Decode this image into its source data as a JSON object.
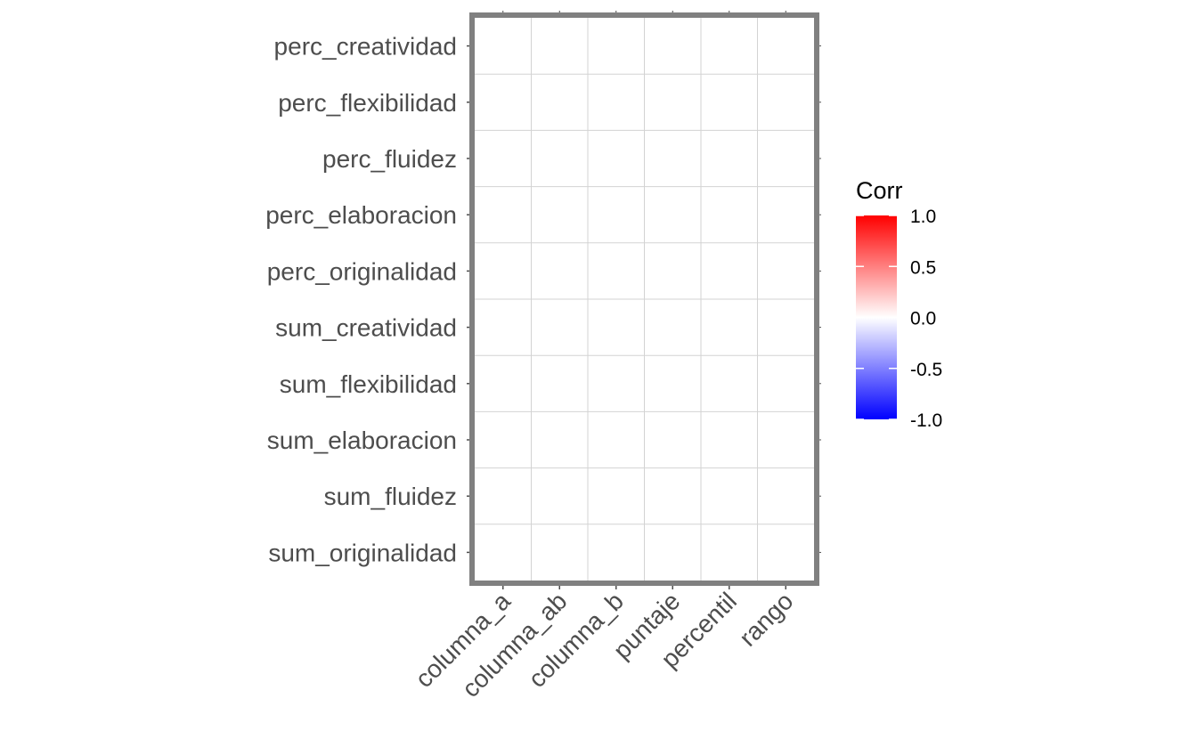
{
  "chart_data": {
    "type": "heatmap",
    "title": "",
    "xlabel": "",
    "ylabel": "",
    "x_categories": [
      "columna_a",
      "columna_ab",
      "columna_b",
      "puntaje",
      "percentil",
      "rango"
    ],
    "y_categories": [
      "perc_creatividad",
      "perc_flexibilidad",
      "perc_fluidez",
      "perc_elaboracion",
      "perc_originalidad",
      "sum_creatividad",
      "sum_flexibilidad",
      "sum_elaboracion",
      "sum_fluidez",
      "sum_originalidad"
    ],
    "values": null,
    "legend": {
      "title": "Corr",
      "placement": "right",
      "ticks": [
        1.0,
        0.5,
        0.0,
        -0.5,
        -1.0
      ],
      "tick_labels": [
        "1.0",
        "0.5",
        "0.0",
        "-0.5",
        "-1.0"
      ],
      "range": [
        -1.0,
        1.0
      ],
      "colors": {
        "high": "#ff0000",
        "mid": "#ffffff",
        "low": "#0000ff"
      }
    },
    "grid": true,
    "panel_border_color": "#808080"
  }
}
